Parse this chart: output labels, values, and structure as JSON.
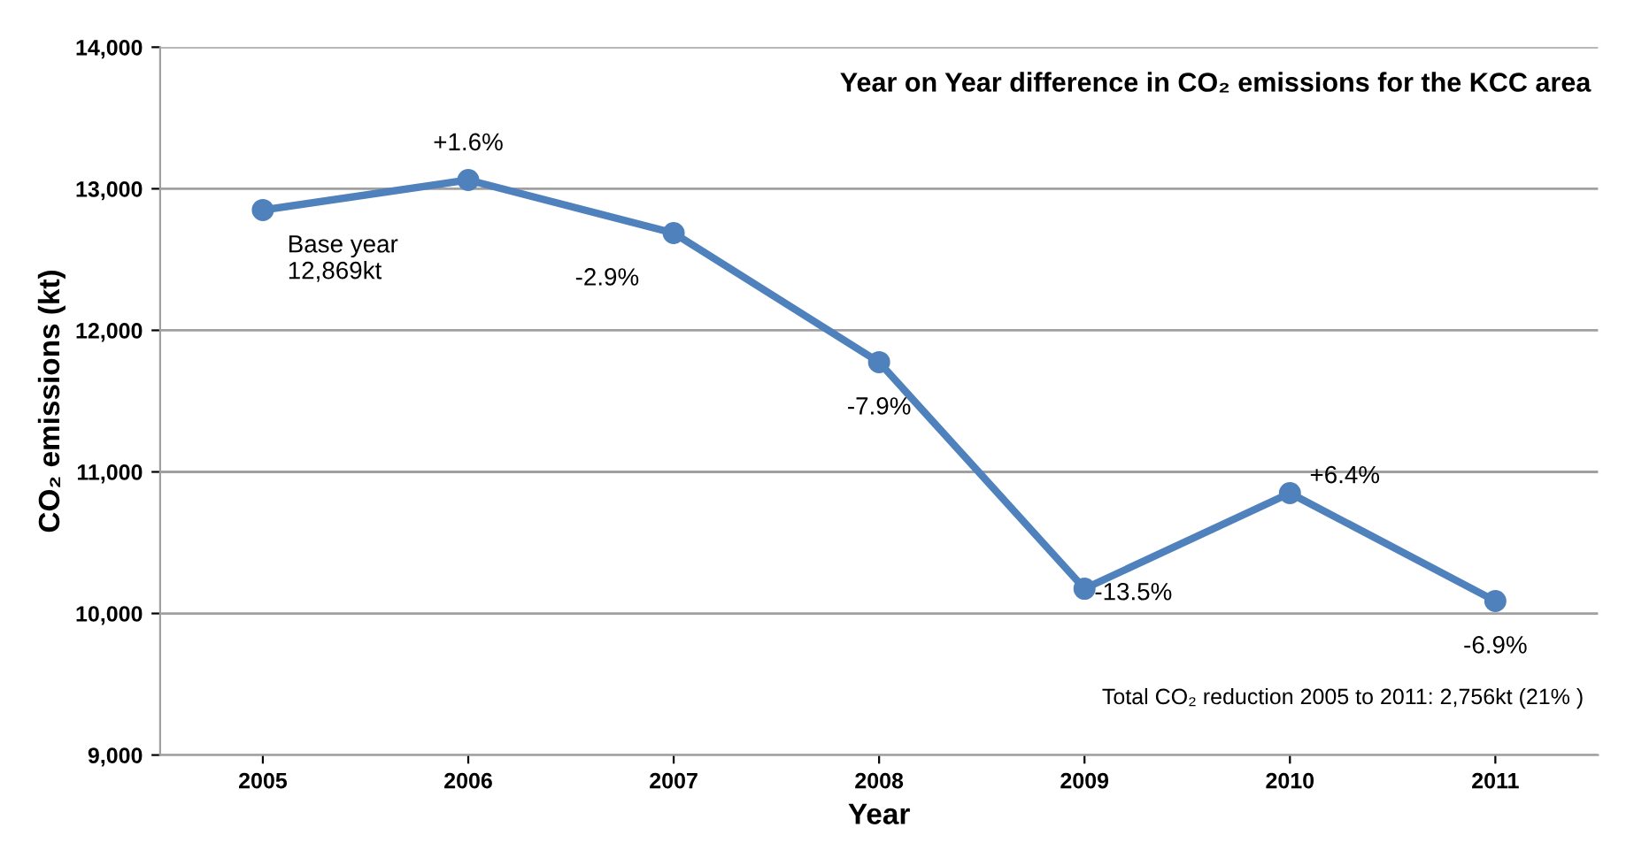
{
  "chart_data": {
    "type": "line",
    "title": "Year on Year difference in CO₂ emissions for the KCC area",
    "xlabel": "Year",
    "ylabel": "CO₂ emissions (kt)",
    "categories": [
      "2005",
      "2006",
      "2007",
      "2008",
      "2009",
      "2010",
      "2011"
    ],
    "series": [
      {
        "color": "#4f81bd",
        "values": [
          12850,
          13062,
          12687,
          11775,
          10175,
          10850,
          10088
        ]
      }
    ],
    "ylim": [
      9000,
      14000
    ],
    "yticks": [
      {
        "value": 9000,
        "label": "9,000"
      },
      {
        "value": 10000,
        "label": "10,000"
      },
      {
        "value": 11000,
        "label": "11,000"
      },
      {
        "value": 12000,
        "label": "12,000"
      },
      {
        "value": 13000,
        "label": "13,000"
      },
      {
        "value": 14000,
        "label": "14,000"
      }
    ],
    "grid": "y",
    "marker": "circle",
    "line_style": "solid",
    "annotations": [
      {
        "text": "Base year\n12,869kt",
        "x": "2005",
        "y": 12850
      },
      {
        "text": "+1.6%",
        "x": "2006",
        "y": 13062
      },
      {
        "text": "-2.9%",
        "x": "2007",
        "y": 12687
      },
      {
        "text": "-7.9%",
        "x": "2008",
        "y": 11775
      },
      {
        "text": "-13.5%",
        "x": "2009",
        "y": 10175
      },
      {
        "text": "+6.4%",
        "x": "2010",
        "y": 10850
      },
      {
        "text": "-6.9%",
        "x": "2011",
        "y": 10088
      },
      "Total CO₂ reduction 2005 to 2011: 2,756kt (21% )"
    ]
  }
}
